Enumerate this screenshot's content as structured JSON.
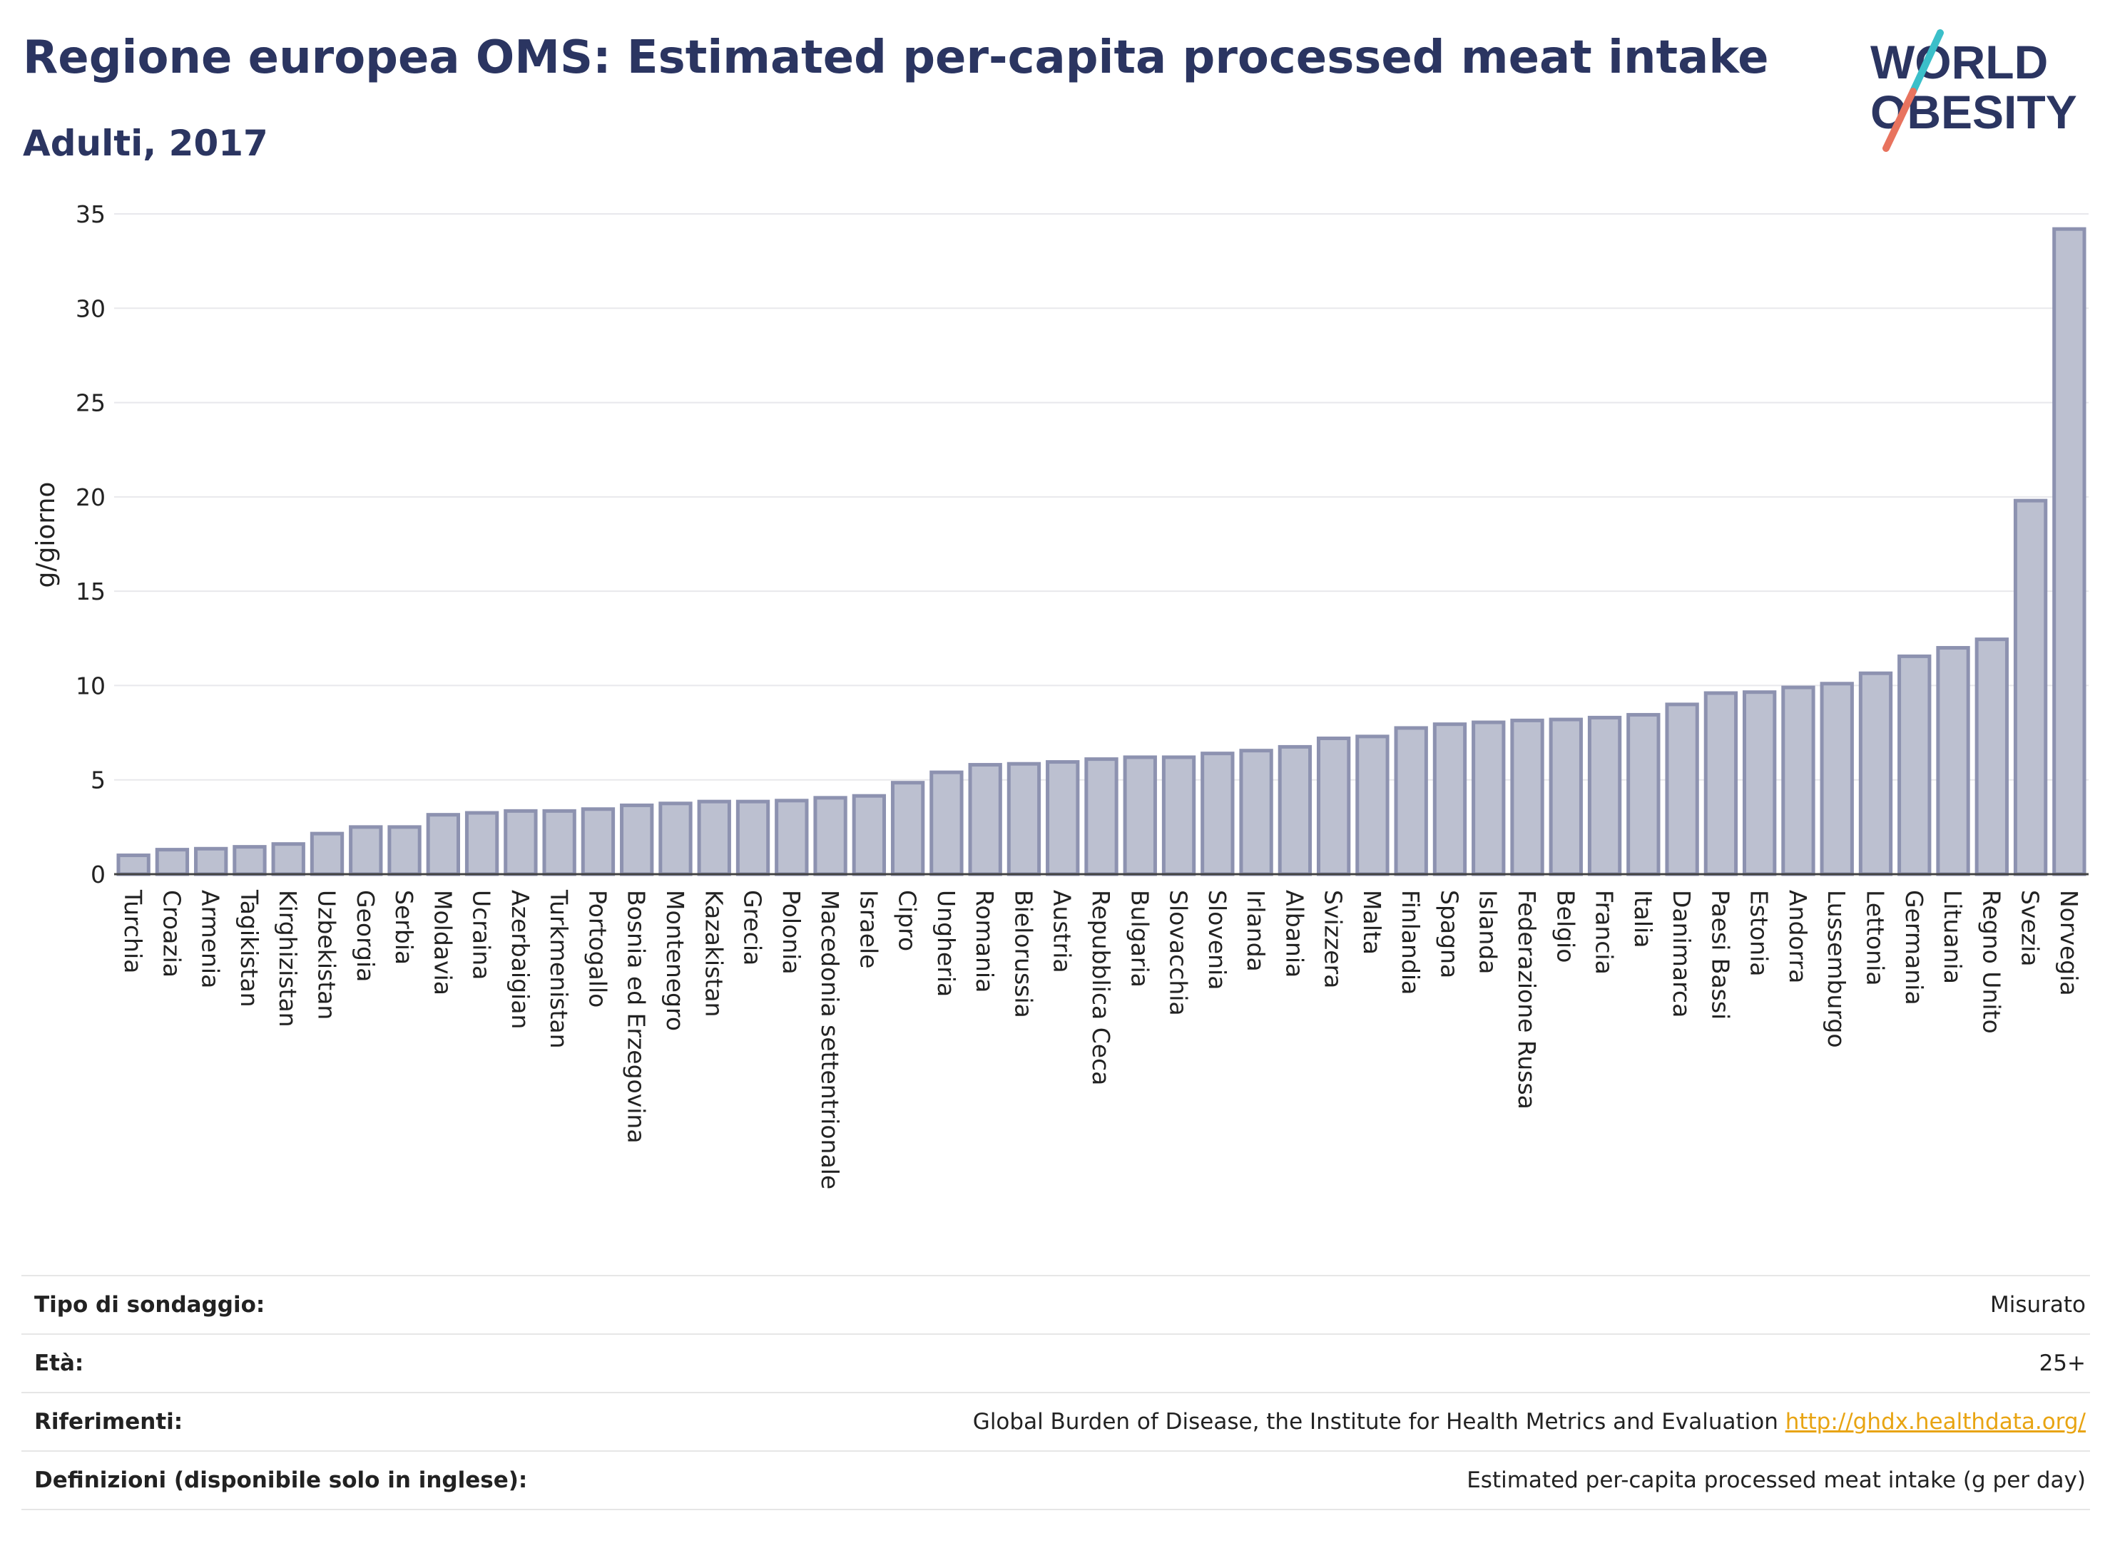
{
  "header": {
    "title": "Regione europea OMS: Estimated per-capita processed meat intake",
    "subtitle": "Adulti, 2017"
  },
  "logo": {
    "line1": "WORLD",
    "line2": "OBESITY",
    "accent_teal": "#3bbfc9",
    "accent_coral": "#e8735e"
  },
  "colors": {
    "bar_fill": "#bcc0d0",
    "bar_stroke": "#8d92b0",
    "title": "#2b3561",
    "link": "#e8a412"
  },
  "chart_data": {
    "type": "bar",
    "ylabel": "g/giorno",
    "ylim": [
      0,
      35
    ],
    "yticks": [
      0,
      5,
      10,
      15,
      20,
      25,
      30,
      35
    ],
    "grid": true,
    "categories": [
      "Turchia",
      "Croazia",
      "Armenia",
      "Tagikistan",
      "Kirghizistan",
      "Uzbekistan",
      "Georgia",
      "Serbia",
      "Moldavia",
      "Ucraina",
      "Azerbaigian",
      "Turkmenistan",
      "Portogallo",
      "Bosnia ed Erzegovina",
      "Montenegro",
      "Kazakistan",
      "Grecia",
      "Polonia",
      "Macedonia settentrionale",
      "Israele",
      "Cipro",
      "Ungheria",
      "Romania",
      "Bielorussia",
      "Austria",
      "Repubblica Ceca",
      "Bulgaria",
      "Slovacchia",
      "Slovenia",
      "Irlanda",
      "Albania",
      "Svizzera",
      "Malta",
      "Finlandia",
      "Spagna",
      "Islanda",
      "Federazione Russa",
      "Belgio",
      "Francia",
      "Italia",
      "Danimarca",
      "Paesi Bassi",
      "Estonia",
      "Andorra",
      "Lussemburgo",
      "Lettonia",
      "Germania",
      "Lituania",
      "Regno Unito",
      "Svezia",
      "Norvegia"
    ],
    "values": [
      1.0,
      1.3,
      1.35,
      1.45,
      1.6,
      2.15,
      2.5,
      2.5,
      3.15,
      3.25,
      3.35,
      3.35,
      3.45,
      3.65,
      3.75,
      3.85,
      3.85,
      3.9,
      4.05,
      4.15,
      4.85,
      5.4,
      5.8,
      5.85,
      5.95,
      6.1,
      6.2,
      6.2,
      6.4,
      6.55,
      6.75,
      7.2,
      7.3,
      7.75,
      7.95,
      8.05,
      8.15,
      8.2,
      8.3,
      8.45,
      9.0,
      9.6,
      9.65,
      9.9,
      10.1,
      10.65,
      11.55,
      12.0,
      12.45,
      19.8,
      34.2
    ]
  },
  "info": [
    {
      "key": "Tipo di sondaggio:",
      "value": "Misurato"
    },
    {
      "key": "Età:",
      "value": "25+"
    },
    {
      "key": "Riferimenti:",
      "value": "Global Burden of Disease, the Institute for Health Metrics and Evaluation",
      "link": "http://ghdx.healthdata.org/"
    },
    {
      "key": "Definizioni (disponibile solo in inglese):",
      "value": "Estimated per-capita processed meat intake (g per day)"
    }
  ]
}
